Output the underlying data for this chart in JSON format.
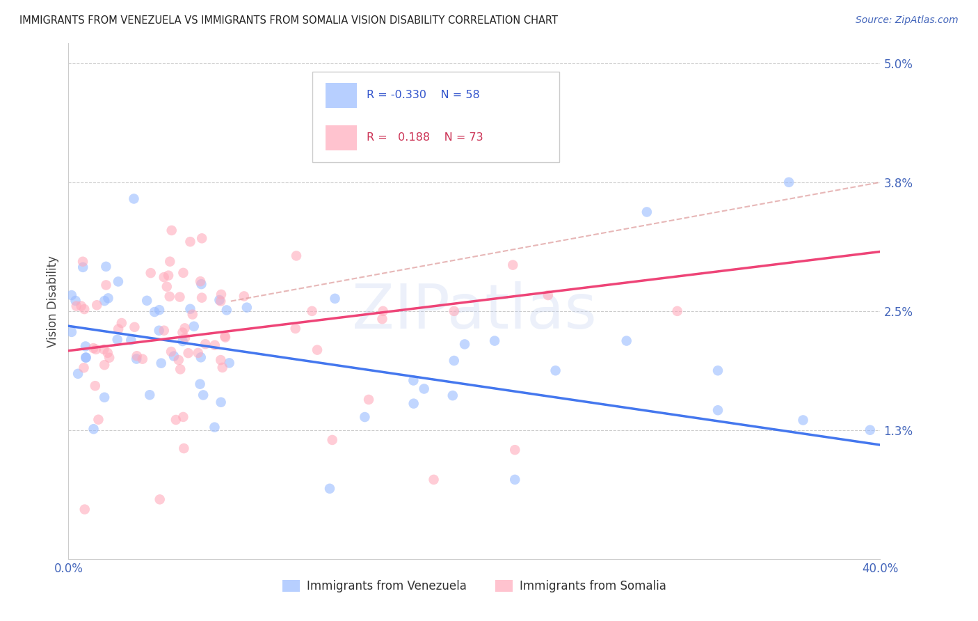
{
  "title": "IMMIGRANTS FROM VENEZUELA VS IMMIGRANTS FROM SOMALIA VISION DISABILITY CORRELATION CHART",
  "source": "Source: ZipAtlas.com",
  "ylabel": "Vision Disability",
  "color_venezuela": "#99bbff",
  "color_venezuela_line": "#4477ee",
  "color_somalia": "#ffaabb",
  "color_somalia_line": "#ee4477",
  "color_somalia_dashed": "#dd9999",
  "legend_label_1": "Immigrants from Venezuela",
  "legend_label_2": "Immigrants from Somalia",
  "watermark": "ZIPatlas",
  "watermark_color": "#bbccee",
  "background_color": "#ffffff",
  "grid_color": "#cccccc",
  "axis_color": "#4466bb",
  "title_color": "#222222",
  "source_color": "#4466bb",
  "xlim": [
    0.0,
    0.4
  ],
  "ylim": [
    0.0,
    0.052
  ],
  "ytick_vals": [
    0.013,
    0.025,
    0.038,
    0.05
  ],
  "ytick_labels": [
    "1.3%",
    "2.5%",
    "3.8%",
    "5.0%"
  ],
  "xtick_vals": [
    0.0,
    0.1,
    0.2,
    0.3,
    0.4
  ],
  "xtick_labels": [
    "0.0%",
    "",
    "",
    "",
    "40.0%"
  ],
  "n_venezuela": 58,
  "n_somalia": 73,
  "R_venezuela": -0.33,
  "R_somalia": 0.188,
  "ven_line_x": [
    0.0,
    0.4
  ],
  "ven_line_y": [
    0.0235,
    0.0115
  ],
  "som_line_x": [
    0.0,
    0.4
  ],
  "som_line_y": [
    0.021,
    0.031
  ],
  "dashed_line_x": [
    0.08,
    0.4
  ],
  "dashed_line_y": [
    0.026,
    0.038
  ]
}
